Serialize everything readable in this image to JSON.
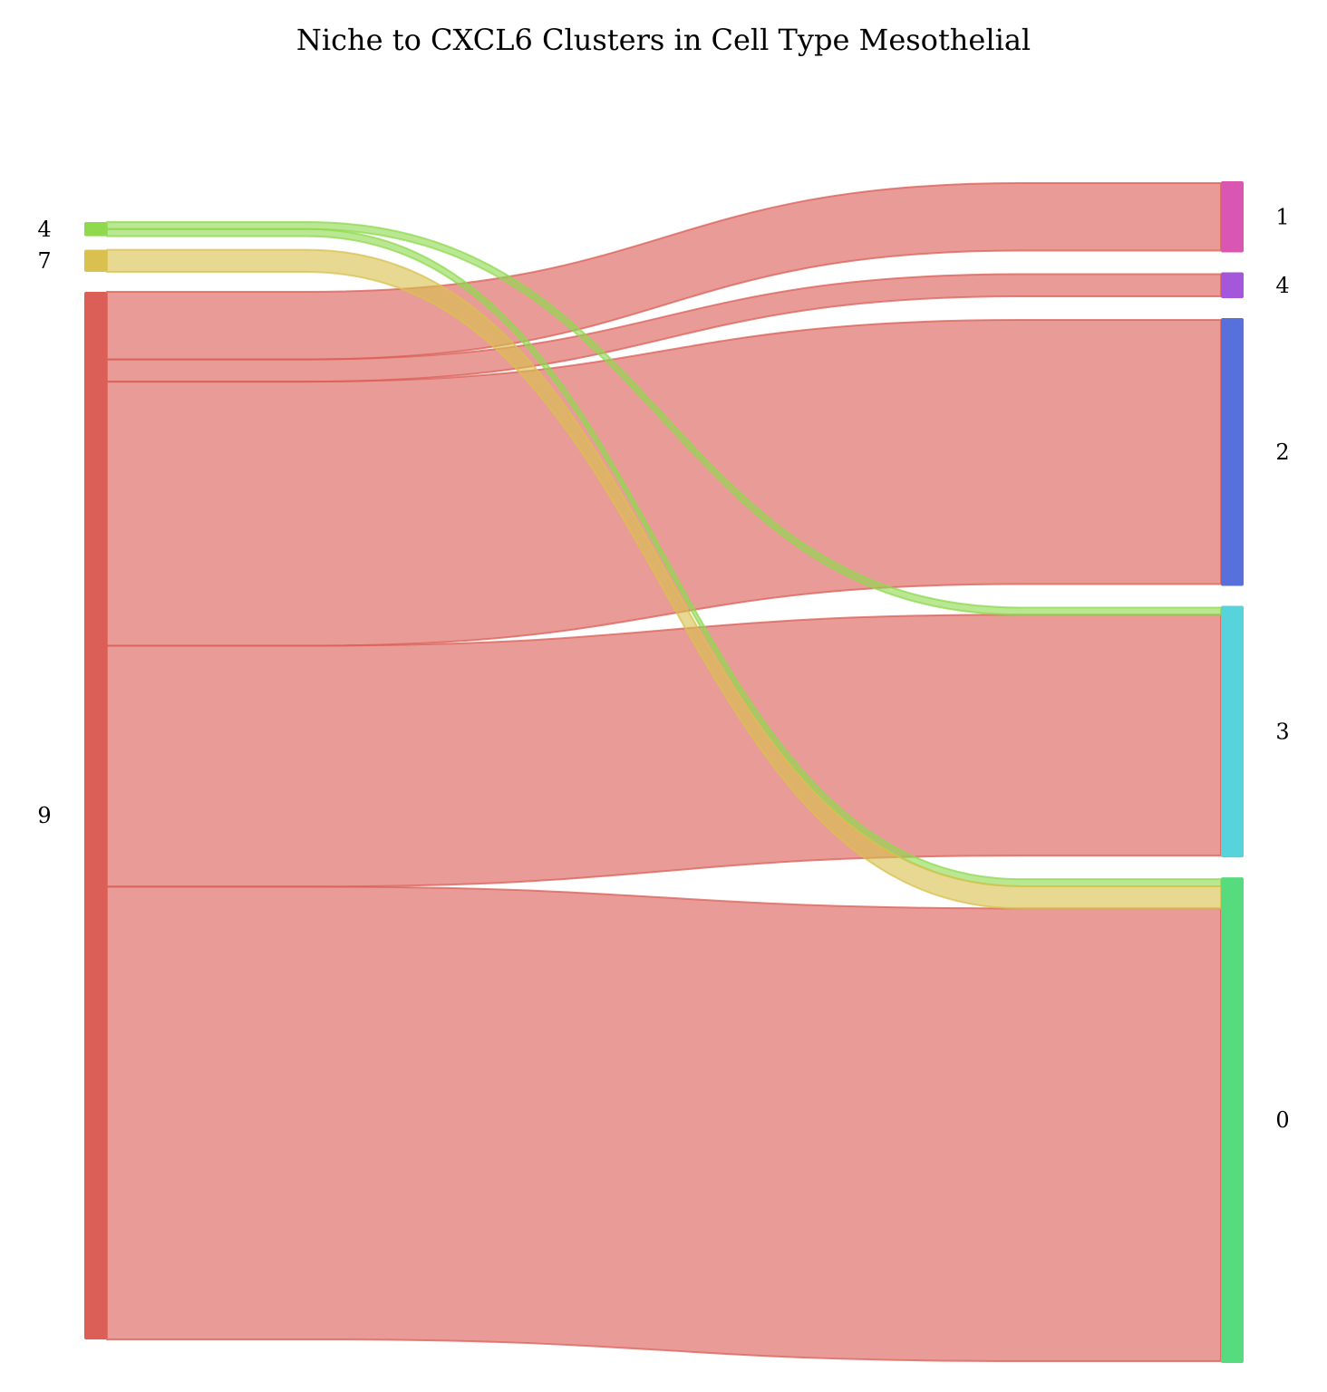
{
  "chart_data": {
    "type": "sankey",
    "title": "Niche to CXCL6 Clusters in Cell Type Mesothelial",
    "sources": [
      {
        "id": "s4",
        "label": "4",
        "color": "#8fd94f"
      },
      {
        "id": "s7",
        "label": "7",
        "color": "#d9c04f"
      },
      {
        "id": "s9",
        "label": "9",
        "color": "#db5f57"
      }
    ],
    "targets": [
      {
        "id": "t1",
        "label": "1",
        "color": "#d957b2"
      },
      {
        "id": "t4",
        "label": "4",
        "color": "#a457db"
      },
      {
        "id": "t2",
        "label": "2",
        "color": "#5770db"
      },
      {
        "id": "t3",
        "label": "3",
        "color": "#57d3db"
      },
      {
        "id": "t0",
        "label": "0",
        "color": "#57db7f"
      }
    ],
    "links": [
      {
        "source": "s4",
        "target": "t3",
        "value": 7
      },
      {
        "source": "s4",
        "target": "t0",
        "value": 7
      },
      {
        "source": "s7",
        "target": "t0",
        "value": 22
      },
      {
        "source": "s9",
        "target": "t1",
        "value": 67
      },
      {
        "source": "s9",
        "target": "t4",
        "value": 22
      },
      {
        "source": "s9",
        "target": "t2",
        "value": 262
      },
      {
        "source": "s9",
        "target": "t3",
        "value": 239
      },
      {
        "source": "s9",
        "target": "t0",
        "value": 449
      }
    ]
  }
}
